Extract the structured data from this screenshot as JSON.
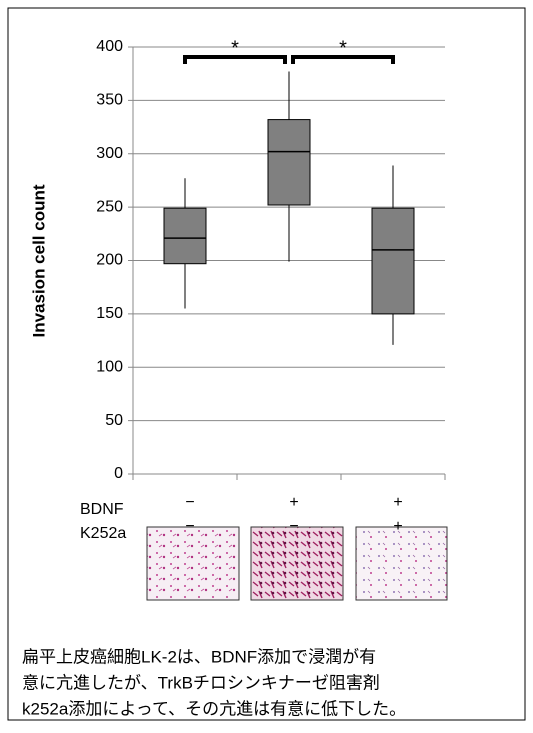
{
  "chart_data": {
    "type": "box",
    "y_label": "Invasion cell count",
    "categories": [
      null,
      null,
      null
    ],
    "boxes": [
      {
        "low": 155,
        "q1": 197,
        "median": 221,
        "q3": 249,
        "high": 277
      },
      {
        "low": 199,
        "q1": 252,
        "median": 302,
        "q3": 332,
        "high": 377
      },
      {
        "low": 121,
        "q1": 150,
        "median": 210,
        "q3": 249,
        "high": 289
      }
    ],
    "color": "#808080",
    "ylim": [
      0,
      400
    ],
    "yticks": [
      0,
      50,
      100,
      150,
      200,
      250,
      300,
      350,
      400
    ],
    "grid": true,
    "significance": [
      "*",
      "*"
    ],
    "x_rows": [
      {
        "name": "BDNF",
        "values": [
          "−",
          "+",
          "+"
        ]
      },
      {
        "name": "K252a",
        "values": [
          "−",
          "−",
          "+"
        ]
      }
    ]
  },
  "caption": [
    "扁平上皮癌細胞LK-2は、BDNF添加で浸潤が有",
    "意に亢進したが、TrkBチロシンキナーゼ阻害剤",
    "k252a添加によって、その亢進は有意に低下した。"
  ]
}
